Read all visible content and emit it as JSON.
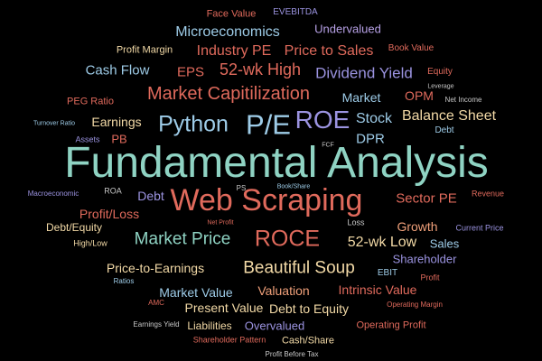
{
  "palette": {
    "background": "#000000",
    "red": "#E06A5C",
    "orange": "#F0A07A",
    "cream": "#F2D9A6",
    "teal": "#8FD3C3",
    "lightblue": "#9ECCE8",
    "purple": "#9B93E0",
    "blue": "#7FA3D9"
  },
  "words": [
    {
      "text": "Face Value",
      "color": "#E06A5C"
    },
    {
      "text": "EVEBITDA",
      "color": "#9B93E0"
    },
    {
      "text": "Undervalued",
      "color": "#B7A1E6"
    },
    {
      "text": "Microeconomics",
      "color": "#9ECCE8"
    },
    {
      "text": "Profit Margin",
      "color": "#F2D9A6"
    },
    {
      "text": "Industry PE",
      "color": "#E06A5C"
    },
    {
      "text": "Price to Sales",
      "color": "#E06A5C"
    },
    {
      "text": "Book Value",
      "color": "#E06A5C"
    },
    {
      "text": "Cash Flow",
      "color": "#9ECCE8"
    },
    {
      "text": "EPS",
      "color": "#E06A5C"
    },
    {
      "text": "52-wk High",
      "color": "#E06A5C"
    },
    {
      "text": "Dividend Yield",
      "color": "#9B93E0"
    },
    {
      "text": "Equity",
      "color": "#E06A5C"
    },
    {
      "text": "Leverage",
      "color": "#C8C8C8"
    },
    {
      "text": "PEG Ratio",
      "color": "#E06A5C"
    },
    {
      "text": "Market Capitilization",
      "color": "#E06A5C"
    },
    {
      "text": "Market",
      "color": "#9ECCE8"
    },
    {
      "text": "OPM",
      "color": "#E06A5C"
    },
    {
      "text": "Net Income",
      "color": "#C8C8C8"
    },
    {
      "text": "Turnover Ratio",
      "color": "#9ECCE8"
    },
    {
      "text": "Earnings",
      "color": "#F2D9A6"
    },
    {
      "text": "Python",
      "color": "#9ECCE8"
    },
    {
      "text": "P/E",
      "color": "#9ECCE8"
    },
    {
      "text": "ROE",
      "color": "#9B93E0"
    },
    {
      "text": "Stock",
      "color": "#9ECCE8"
    },
    {
      "text": "Balance Sheet",
      "color": "#F2D9A6"
    },
    {
      "text": "Debt",
      "color": "#9ECCE8"
    },
    {
      "text": "Assets",
      "color": "#9B93E0"
    },
    {
      "text": "PB",
      "color": "#E06A5C"
    },
    {
      "text": "DPR",
      "color": "#9ECCE8"
    },
    {
      "text": "FCF",
      "color": "#C8C8C8"
    },
    {
      "text": "Fundamental Analysis",
      "color": "#8FD3C3"
    },
    {
      "text": "Macroeconomic",
      "color": "#9B93E0"
    },
    {
      "text": "ROA",
      "color": "#C8C8C8"
    },
    {
      "text": "PS",
      "color": "#C8C8C8"
    },
    {
      "text": "Book/Share",
      "color": "#9ECCE8"
    },
    {
      "text": "Debt",
      "color": "#9B93E0"
    },
    {
      "text": "Web Scraping",
      "color": "#E06A5C"
    },
    {
      "text": "Sector PE",
      "color": "#E06A5C"
    },
    {
      "text": "Revenue",
      "color": "#E06A5C"
    },
    {
      "text": "Profit/Loss",
      "color": "#E06A5C"
    },
    {
      "text": "Net Profit",
      "color": "#E06A5C"
    },
    {
      "text": "Loss",
      "color": "#C8C8C8"
    },
    {
      "text": "Growth",
      "color": "#F0A07A"
    },
    {
      "text": "Current Price",
      "color": "#9B93E0"
    },
    {
      "text": "Debt/Equity",
      "color": "#F2D9A6"
    },
    {
      "text": "Market Price",
      "color": "#8FD3C3"
    },
    {
      "text": "ROCE",
      "color": "#E06A5C"
    },
    {
      "text": "52-wk Low",
      "color": "#F2D9A6"
    },
    {
      "text": "Sales",
      "color": "#9ECCE8"
    },
    {
      "text": "High/Low",
      "color": "#F2D9A6"
    },
    {
      "text": "Shareholder",
      "color": "#9B93E0"
    },
    {
      "text": "Price-to-Earnings",
      "color": "#F2D9A6"
    },
    {
      "text": "Beautiful Soup",
      "color": "#F2D9A6"
    },
    {
      "text": "EBIT",
      "color": "#9ECCE8"
    },
    {
      "text": "Profit",
      "color": "#E06A5C"
    },
    {
      "text": "Ratios",
      "color": "#9ECCE8"
    },
    {
      "text": "Market Value",
      "color": "#9ECCE8"
    },
    {
      "text": "Valuation",
      "color": "#F0A07A"
    },
    {
      "text": "Intrinsic Value",
      "color": "#E06A5C"
    },
    {
      "text": "AMC",
      "color": "#E06A5C"
    },
    {
      "text": "Present Value",
      "color": "#F2D9A6"
    },
    {
      "text": "Debt to Equity",
      "color": "#F2D9A6"
    },
    {
      "text": "Operating Margin",
      "color": "#E06A5C"
    },
    {
      "text": "Earnings Yield",
      "color": "#C8C8C8"
    },
    {
      "text": "Liabilities",
      "color": "#F2D9A6"
    },
    {
      "text": "Overvalued",
      "color": "#9B93E0"
    },
    {
      "text": "Operating Profit",
      "color": "#E06A5C"
    },
    {
      "text": "Shareholder Pattern",
      "color": "#E06A5C"
    },
    {
      "text": "Cash/Share",
      "color": "#F2D9A6"
    },
    {
      "text": "Profit Before Tax",
      "color": "#C8C8C8"
    }
  ]
}
